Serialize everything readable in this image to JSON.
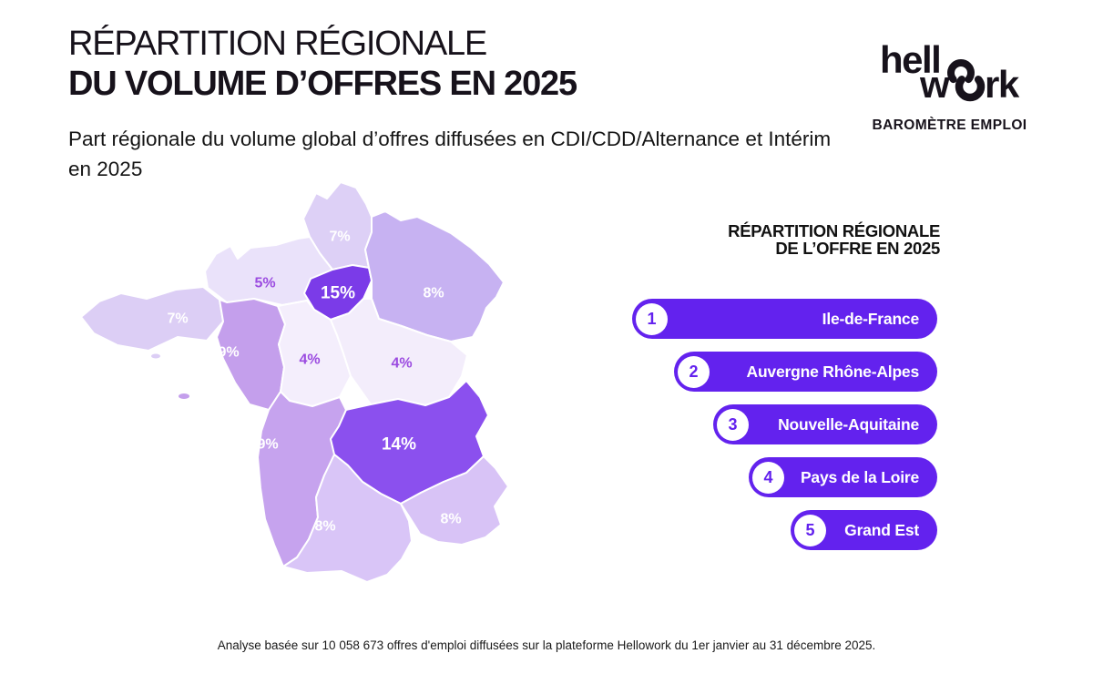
{
  "header": {
    "title_line1": "RÉPARTITION RÉGIONALE",
    "title_line2": "DU VOLUME D’OFFRES EN 2025",
    "subtitle": "Part régionale du volume global d’offres diffusées en CDI/CDD/Alternance et Intérim en 2025"
  },
  "brand": {
    "logo_line1": "hell",
    "logo_line2_pre": "w",
    "logo_line2_post": "rk",
    "tagline": "BAROMÈTRE EMPLOI"
  },
  "ranking": {
    "title_line1": "RÉPARTITION RÉGIONALE",
    "title_line2": "DE L’OFFRE EN 2025",
    "items": [
      {
        "rank": "1",
        "label": "Ile-de-France"
      },
      {
        "rank": "2",
        "label": "Auvergne Rhône-Alpes"
      },
      {
        "rank": "3",
        "label": "Nouvelle-Aquitaine"
      },
      {
        "rank": "4",
        "label": "Pays de la Loire"
      },
      {
        "rank": "5",
        "label": "Grand Est"
      }
    ]
  },
  "chart_data": {
    "type": "heatmap",
    "variant": "choropleth-map-france-regions",
    "title": "Répartition régionale de l’offre en 2025",
    "unit": "%",
    "legend": "none",
    "regions": [
      {
        "name": "Hauts-de-France",
        "value": 7,
        "label": "7%",
        "fill": "#DDD0F6",
        "label_color": "#FFFFFF"
      },
      {
        "name": "Normandie",
        "value": 5,
        "label": "5%",
        "fill": "#EAE2FA",
        "label_color": "#9B4BE0"
      },
      {
        "name": "Île-de-France",
        "value": 15,
        "label": "15%",
        "fill": "#7B3BE8",
        "label_color": "#FFFFFF"
      },
      {
        "name": "Grand Est",
        "value": 8,
        "label": "8%",
        "fill": "#C7B2F2",
        "label_color": "#FFFFFF"
      },
      {
        "name": "Bretagne",
        "value": 7,
        "label": "7%",
        "fill": "#DCCEF5",
        "label_color": "#FFFFFF"
      },
      {
        "name": "Pays de la Loire",
        "value": 9,
        "label": "9%",
        "fill": "#C49FEC",
        "label_color": "#FFFFFF"
      },
      {
        "name": "Centre-Val de Loire",
        "value": 4,
        "label": "4%",
        "fill": "#F4EEFC",
        "label_color": "#9B4BE0"
      },
      {
        "name": "Bourgogne-Franche-Comté",
        "value": 4,
        "label": "4%",
        "fill": "#F3EDFB",
        "label_color": "#9B4BE0"
      },
      {
        "name": "Nouvelle-Aquitaine",
        "value": 9,
        "label": "9%",
        "fill": "#C6A3EE",
        "label_color": "#FFFFFF"
      },
      {
        "name": "Auvergne-Rhône-Alpes",
        "value": 14,
        "label": "14%",
        "fill": "#8B50EE",
        "label_color": "#FFFFFF"
      },
      {
        "name": "Occitanie",
        "value": 8,
        "label": "8%",
        "fill": "#D9C5F7",
        "label_color": "#FFFFFF"
      },
      {
        "name": "Provence-Alpes-Côte d’Azur",
        "value": 8,
        "label": "8%",
        "fill": "#D8C3F6",
        "label_color": "#FFFFFF"
      }
    ]
  },
  "footer": {
    "note": "Analyse basée sur 10 058 673 offres d'emploi diffusées sur la plateforme Hellowork du 1er janvier au 31 décembre 2025."
  },
  "colors": {
    "accent": "#6322EE",
    "label_purple": "#9B4BE0",
    "text_dark": "#17121B",
    "background": "#FFFFFF"
  }
}
